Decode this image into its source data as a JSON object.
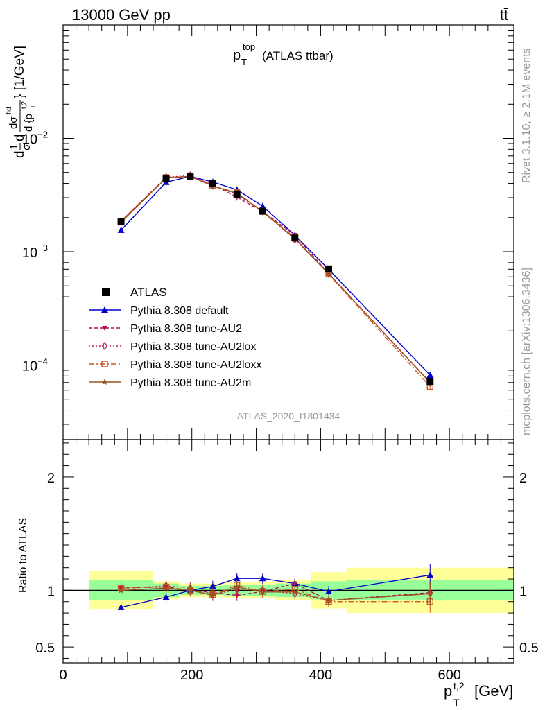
{
  "header": {
    "energy_label": "13000 GeV pp",
    "process_label": "tt̄",
    "side_label_top": "Rivet 3.1.10, ≥ 2.1M events",
    "side_label_bottom": "mcplots.cern.ch [arXiv:1306.3436]"
  },
  "chart_data": {
    "type": "line",
    "title": "p_T^top (ATLAS ttbar)",
    "title_main": "p",
    "title_sub": "T",
    "title_sup": "top",
    "title_tail": "(ATLAS ttbar)",
    "analysis_label": "ATLAS_2020_I1801434",
    "ylabel": "1/σ dσ^fid / d{p_T^t,2} [1/GeV]",
    "ylabel_parts": {
      "a": "d",
      "frac1_num": "1",
      "frac1_den": "σ",
      "b": "d",
      "frac2_num": "dσ",
      "frac2_num_sup": "fid",
      "frac2_den": "d {p",
      "frac2_den_sub": "T",
      "frac2_den_sup": "t,2",
      "tail": "} [1/GeV]"
    },
    "xlabel_main": "p",
    "xlabel_sub": "T",
    "xlabel_sup": "t,2",
    "xlabel_tail": "[GeV]",
    "xlim": [
      0,
      700
    ],
    "ylim": [
      2.2e-05,
      0.1
    ],
    "yscale": "log",
    "x_ticks": [
      0,
      200,
      400,
      600
    ],
    "y_ticks": [
      {
        "value": 0.01,
        "base": "10",
        "exp": "−2"
      },
      {
        "value": 0.001,
        "base": "10",
        "exp": "−3"
      },
      {
        "value": 0.0001,
        "base": "10",
        "exp": "−4"
      }
    ],
    "x": [
      90,
      160,
      197.5,
      232.5,
      270,
      310,
      360,
      412.5,
      570
    ],
    "bin_edges": [
      40,
      140,
      180,
      215,
      250,
      290,
      330,
      385,
      440,
      700
    ],
    "data": {
      "name": "ATLAS",
      "values": [
        0.00183,
        0.00438,
        0.00462,
        0.00398,
        0.00318,
        0.00228,
        0.00132,
        0.000705,
        7.18e-05
      ]
    },
    "series": [
      {
        "name": "Pythia 8.308 default",
        "color": "#0000cc",
        "marker": "triangle-up",
        "dash": "",
        "values": [
          0.00155,
          0.0041,
          0.00462,
          0.00412,
          0.00352,
          0.00252,
          0.0014,
          0.000698,
          8.15e-05
        ]
      },
      {
        "name": "Pythia 8.308 tune-AU2",
        "color": "#aa1155",
        "marker": "triangle-down",
        "dash": "5,3",
        "values": [
          0.00186,
          0.00451,
          0.00462,
          0.0039,
          0.00303,
          0.00226,
          0.0014,
          0.000641,
          7.05e-05
        ]
      },
      {
        "name": "Pythia 8.308 tune-AU2lox",
        "color": "#bb2255",
        "marker": "diamond",
        "dash": "2,3",
        "values": [
          0.00186,
          0.00454,
          0.0047,
          0.00384,
          0.0032,
          0.00228,
          0.00128,
          0.00064,
          7e-05
        ]
      },
      {
        "name": "Pythia 8.308 tune-AU2loxx",
        "color": "#cc5522",
        "marker": "square-open",
        "dash": "8,3,2,3",
        "values": [
          0.00186,
          0.00451,
          0.00462,
          0.00381,
          0.00332,
          0.00226,
          0.00133,
          0.000633,
          6.46e-05
        ]
      },
      {
        "name": "Pythia 8.308 tune-AU2m",
        "color": "#995522",
        "marker": "star",
        "dash": "",
        "values": [
          0.00182,
          0.00446,
          0.00462,
          0.00379,
          0.00328,
          0.00225,
          0.0013,
          0.00064,
          6.98e-05
        ]
      }
    ],
    "ratio": {
      "ylabel": "Ratio to ATLAS",
      "ylim": [
        0.36,
        2.33
      ],
      "y_ticks": [
        0.5,
        1,
        2
      ],
      "y_tick_labels": [
        "0.5",
        "1",
        "2"
      ],
      "band_inner_half": [
        0.09,
        0.06,
        0.04,
        0.04,
        0.05,
        0.05,
        0.06,
        0.08,
        0.09
      ],
      "band_outer_half": [
        0.17,
        0.08,
        0.06,
        0.06,
        0.07,
        0.07,
        0.09,
        0.16,
        0.2
      ],
      "series_values": [
        [
          0.85,
          0.94,
          1.0,
          1.035,
          1.105,
          1.105,
          1.06,
          0.99,
          1.135
        ],
        [
          1.02,
          1.03,
          1.0,
          0.98,
          0.955,
          0.99,
          1.06,
          0.91,
          0.98
        ],
        [
          1.02,
          1.04,
          1.02,
          0.965,
          1.005,
          1.0,
          0.97,
          0.91,
          0.975
        ],
        [
          1.02,
          1.03,
          1.0,
          0.96,
          1.045,
          0.99,
          1.01,
          0.9,
          0.9
        ],
        [
          1.0,
          1.02,
          1.0,
          0.955,
          1.03,
          0.985,
          0.985,
          0.91,
          0.97
        ]
      ]
    }
  }
}
